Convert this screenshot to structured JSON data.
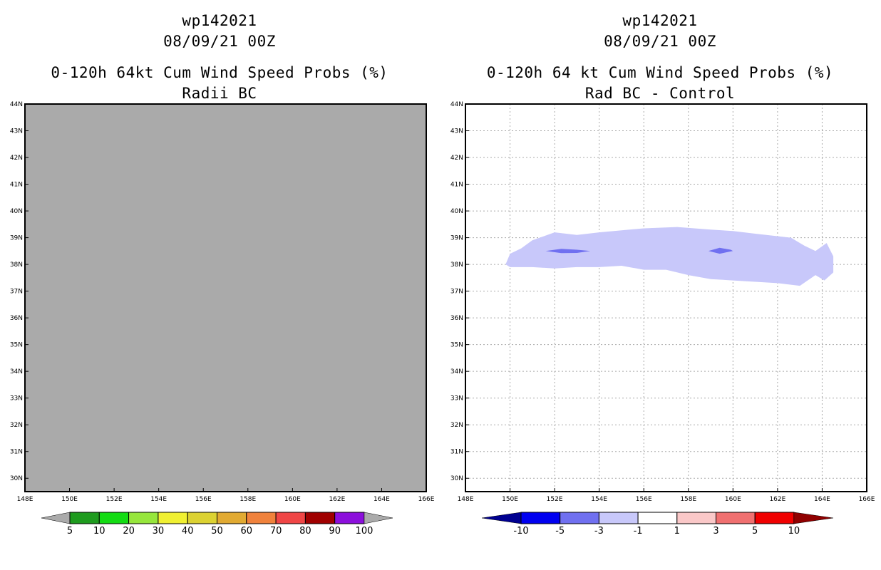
{
  "panels": [
    {
      "storm_id": "wp142021",
      "datetime": "08/09/21 00Z",
      "title": "0-120h 64kt Cum Wind Speed Probs (%)",
      "subtitle": "Radii BC"
    },
    {
      "storm_id": "wp142021",
      "datetime": "08/09/21 00Z",
      "title": "0-120h 64 kt Cum Wind Speed Probs (%)",
      "subtitle": "Rad BC - Control"
    }
  ],
  "colors": {
    "left_fill": "#aaaaaa",
    "contour_light": "#c8c8fa",
    "contour_mid": "#7070f0",
    "left_scale": [
      "#1e9b1e",
      "#13dc13",
      "#96e63c",
      "#f0f032",
      "#dcd232",
      "#e1aa32",
      "#f0823c",
      "#f04646",
      "#a00000",
      "#8c0fdc"
    ],
    "left_arrow": "#aaaaaa",
    "right_scale": [
      "#0000f0",
      "#7070f0",
      "#c8c8fa",
      "#ffffff",
      "#fac8c8",
      "#f07070",
      "#f00000"
    ],
    "right_arrow_low": "#000090",
    "right_arrow_high": "#900000"
  },
  "chart_data": [
    {
      "type": "heatmap",
      "title": "0-120h 64kt Cum Wind Speed Probs (%) Radii BC",
      "xlim": [
        148,
        166
      ],
      "ylim": [
        29.5,
        44
      ],
      "x_ticks": [
        "148E",
        "150E",
        "152E",
        "154E",
        "156E",
        "158E",
        "160E",
        "162E",
        "164E",
        "166E"
      ],
      "y_ticks": [
        "30N",
        "31N",
        "32N",
        "33N",
        "34N",
        "35N",
        "36N",
        "37N",
        "38N",
        "39N",
        "40N",
        "41N",
        "42N",
        "43N",
        "44N"
      ],
      "field": "uniform below 5%",
      "grid": false,
      "colorbar_labels": [
        "5",
        "10",
        "20",
        "30",
        "40",
        "50",
        "60",
        "70",
        "80",
        "90",
        "100"
      ]
    },
    {
      "type": "heatmap",
      "title": "0-120h 64 kt Cum Wind Speed Probs (%) Rad BC - Control",
      "xlim": [
        148,
        166
      ],
      "ylim": [
        29.5,
        44
      ],
      "x_ticks": [
        "148E",
        "150E",
        "152E",
        "154E",
        "156E",
        "158E",
        "160E",
        "162E",
        "164E",
        "166E"
      ],
      "y_ticks": [
        "30N",
        "31N",
        "32N",
        "33N",
        "34N",
        "35N",
        "36N",
        "37N",
        "38N",
        "39N",
        "40N",
        "41N",
        "42N",
        "43N",
        "44N"
      ],
      "grid": true,
      "contours": [
        {
          "level": "-3 to -1",
          "polygon": [
            [
              149.8,
              38.0
            ],
            [
              150.0,
              38.4
            ],
            [
              150.5,
              38.6
            ],
            [
              151.0,
              38.9
            ],
            [
              152.0,
              39.2
            ],
            [
              153.0,
              39.1
            ],
            [
              154.0,
              39.2
            ],
            [
              156.0,
              39.35
            ],
            [
              157.5,
              39.4
            ],
            [
              159.0,
              39.3
            ],
            [
              160.0,
              39.25
            ],
            [
              161.0,
              39.15
            ],
            [
              162.6,
              39.0
            ],
            [
              163.2,
              38.7
            ],
            [
              163.7,
              38.5
            ],
            [
              164.2,
              38.8
            ],
            [
              164.5,
              38.3
            ],
            [
              164.5,
              37.7
            ],
            [
              164.1,
              37.4
            ],
            [
              163.7,
              37.6
            ],
            [
              163.0,
              37.2
            ],
            [
              162.0,
              37.3
            ],
            [
              160.0,
              37.4
            ],
            [
              159.0,
              37.45
            ],
            [
              158.0,
              37.6
            ],
            [
              157.0,
              37.8
            ],
            [
              156.0,
              37.8
            ],
            [
              155.0,
              37.95
            ],
            [
              154.0,
              37.9
            ],
            [
              153.0,
              37.9
            ],
            [
              152.0,
              37.85
            ],
            [
              151.0,
              37.9
            ],
            [
              150.0,
              37.9
            ]
          ]
        },
        {
          "level": "-5 to -3",
          "polygon": [
            [
              151.6,
              38.5
            ],
            [
              152.3,
              38.58
            ],
            [
              153.0,
              38.55
            ],
            [
              153.6,
              38.5
            ],
            [
              153.0,
              38.43
            ],
            [
              152.3,
              38.42
            ]
          ]
        },
        {
          "level": "-5 to -3",
          "polygon": [
            [
              158.9,
              38.5
            ],
            [
              159.4,
              38.62
            ],
            [
              159.9,
              38.55
            ],
            [
              160.0,
              38.5
            ],
            [
              159.4,
              38.4
            ]
          ]
        }
      ],
      "colorbar_labels": [
        "-10",
        "-5",
        "-3",
        "-1",
        "1",
        "3",
        "5",
        "10"
      ]
    }
  ]
}
